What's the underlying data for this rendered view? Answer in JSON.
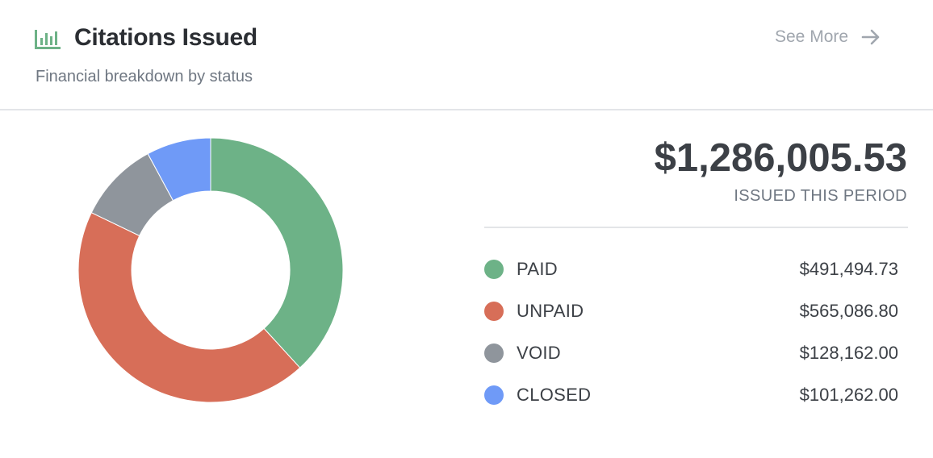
{
  "header": {
    "title": "Citations Issued",
    "subtitle": "Financial breakdown by status",
    "see_more_label": "See More",
    "icon": "bar-chart-icon",
    "arrow_icon": "arrow-right-icon"
  },
  "summary": {
    "total": "$1,286,005.53",
    "total_label": "ISSUED THIS PERIOD"
  },
  "chart_data": {
    "type": "pie",
    "donut": true,
    "categories": [
      "PAID",
      "UNPAID",
      "VOID",
      "CLOSED"
    ],
    "values": [
      491494.73,
      565086.8,
      128162.0,
      101262.0
    ],
    "value_labels": [
      "$491,494.73",
      "$565,086.80",
      "$128,162.00",
      "$101,262.00"
    ],
    "colors": [
      "#6db287",
      "#d76e58",
      "#8f959c",
      "#6f9af7"
    ],
    "legend_position": "right"
  },
  "colors": {
    "accent": "#6db287",
    "muted_text": "#6f7782"
  }
}
